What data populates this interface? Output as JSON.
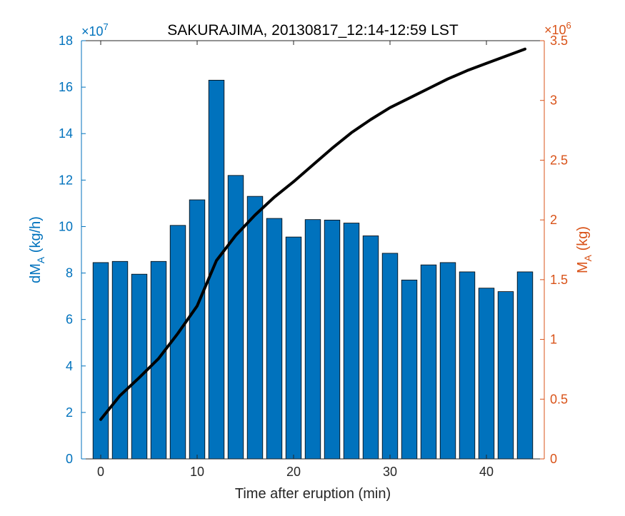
{
  "chart_data": {
    "type": "bar",
    "title": "SAKURAJIMA, 20130817_12:14-12:59 LST",
    "xlabel": "Time after eruption (min)",
    "ylabel_left": {
      "main": "dM",
      "sub": "A",
      "unit": " (kg/h)"
    },
    "ylabel_right": {
      "main": "M",
      "sub": "A",
      "unit": " (kg)"
    },
    "colors": {
      "bars": "#0072BD",
      "left_axis": "#0072BD",
      "right_axis": "#D95319",
      "line": "#000000"
    },
    "xlim": [
      -2,
      46
    ],
    "xticks": [
      0,
      10,
      20,
      30,
      40
    ],
    "left_axis": {
      "ylim": [
        0,
        18
      ],
      "ticks": [
        0,
        2,
        4,
        6,
        8,
        10,
        12,
        14,
        16,
        18
      ],
      "exponent_base": "×10",
      "exponent": "7"
    },
    "right_axis": {
      "ylim": [
        0,
        3.5
      ],
      "ticks": [
        0,
        0.5,
        1,
        1.5,
        2,
        2.5,
        3,
        3.5
      ],
      "exponent_base": "×10",
      "exponent": "6"
    },
    "bars": {
      "name": "dM_A",
      "x": [
        0,
        2,
        4,
        6,
        8,
        10,
        12,
        14,
        16,
        18,
        20,
        22,
        24,
        26,
        28,
        30,
        32,
        34,
        36,
        38,
        40,
        42,
        44
      ],
      "values": [
        8.45,
        8.5,
        7.95,
        8.5,
        10.05,
        11.15,
        16.3,
        12.2,
        11.3,
        10.35,
        9.55,
        10.3,
        10.28,
        10.15,
        9.6,
        8.85,
        7.7,
        8.35,
        8.45,
        8.05,
        7.35,
        7.2,
        8.05
      ]
    },
    "line": {
      "name": "M_A",
      "x": [
        0,
        2,
        4,
        6,
        8,
        10,
        12,
        14,
        16,
        18,
        20,
        22,
        24,
        26,
        28,
        30,
        32,
        34,
        36,
        38,
        40,
        42,
        44
      ],
      "values": [
        0.33,
        0.53,
        0.68,
        0.84,
        1.05,
        1.28,
        1.66,
        1.87,
        2.04,
        2.19,
        2.32,
        2.46,
        2.6,
        2.73,
        2.84,
        2.94,
        3.02,
        3.1,
        3.18,
        3.25,
        3.31,
        3.37,
        3.43
      ]
    }
  }
}
